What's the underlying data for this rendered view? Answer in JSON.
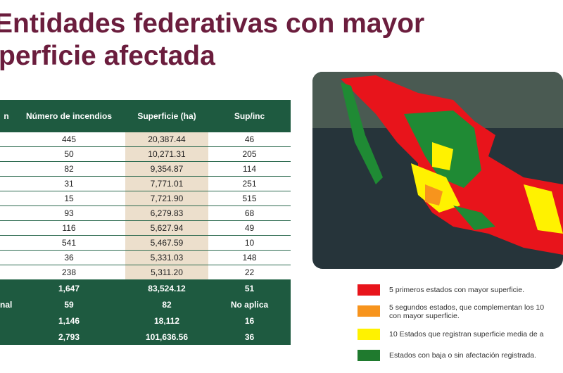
{
  "header": {
    "title_lines": [
      "Entidades federativas con mayor",
      "perficie afectada"
    ]
  },
  "table": {
    "columns": [
      "n",
      "Número de incendios",
      "Superficie (ha)",
      "Sup/inc"
    ],
    "rows": [
      [
        "445",
        "20,387.44",
        "46"
      ],
      [
        "50",
        "10,271.31",
        "205"
      ],
      [
        "82",
        "9,354.87",
        "114"
      ],
      [
        "31",
        "7,771.01",
        "251"
      ],
      [
        "15",
        "7,721.90",
        "515"
      ],
      [
        "93",
        "6,279.83",
        "68"
      ],
      [
        "116",
        "5,627.94",
        "49"
      ],
      [
        "541",
        "5,467.59",
        "10"
      ],
      [
        "36",
        "5,331.03",
        "148"
      ],
      [
        "238",
        "5,311.20",
        "22"
      ]
    ],
    "totals": [
      {
        "cells": [
          "1,647",
          "83,524.12",
          "51"
        ]
      },
      {
        "label": "nal",
        "cells": [
          "59",
          "82",
          "No aplica"
        ]
      },
      {
        "cells": [
          "1,146",
          "18,112",
          "16"
        ]
      },
      {
        "cells": [
          "2,793",
          "101,636.56",
          "36"
        ]
      }
    ]
  },
  "legend": [
    {
      "color": "#e8141b",
      "text": [
        "5 primeros estados con mayor superficie."
      ]
    },
    {
      "color": "#f7941d",
      "text": [
        "5 segundos estados, que complementan los 10",
        "con mayor superficie."
      ]
    },
    {
      "color": "#fff200",
      "text": [
        "10 Estados que registran superficie media de a"
      ]
    },
    {
      "color": "#1f7a2e",
      "text": [
        "Estados con baja o sin afectación registrada."
      ]
    }
  ]
}
